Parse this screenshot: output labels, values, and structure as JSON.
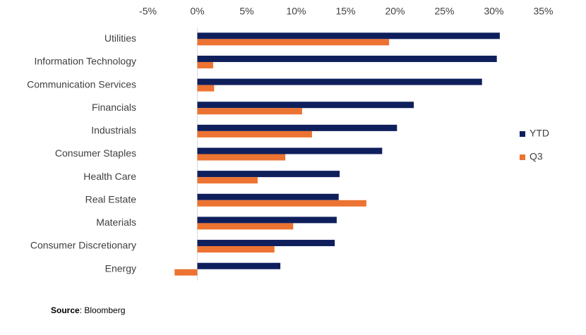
{
  "chart_data": {
    "type": "bar",
    "categories": [
      "Utilities",
      "Information Technology",
      "Communication Services",
      "Financials",
      "Industrials",
      "Consumer Staples",
      "Health Care",
      "Real Estate",
      "Materials",
      "Consumer Discretionary",
      "Energy"
    ],
    "series": [
      {
        "name": "YTD",
        "color": "#0f1f5c",
        "values": [
          30.6,
          30.3,
          28.8,
          21.9,
          20.2,
          18.7,
          14.4,
          14.3,
          14.1,
          13.9,
          8.4
        ]
      },
      {
        "name": "Q3",
        "color": "#ec7331",
        "values": [
          19.4,
          1.6,
          1.7,
          10.6,
          11.6,
          8.9,
          6.1,
          17.1,
          9.7,
          7.8,
          -2.3
        ]
      }
    ],
    "xlim": [
      -5,
      35
    ],
    "xticks": [
      {
        "value": -5,
        "label": "-5%"
      },
      {
        "value": 0,
        "label": "0%"
      },
      {
        "value": 5,
        "label": "5%"
      },
      {
        "value": 10,
        "label": "10%"
      },
      {
        "value": 15,
        "label": "15%"
      },
      {
        "value": 20,
        "label": "20%"
      },
      {
        "value": 25,
        "label": "25%"
      },
      {
        "value": 30,
        "label": "30%"
      },
      {
        "value": 35,
        "label": "35%"
      }
    ],
    "legend_position": "right",
    "source_label": "Source",
    "source_text": ": Bloomberg"
  }
}
